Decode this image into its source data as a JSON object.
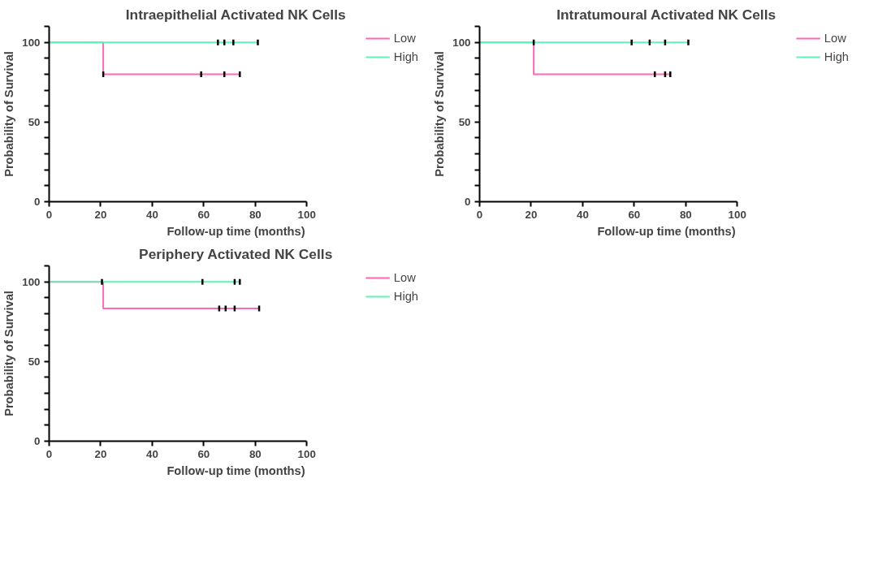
{
  "chart_data": [
    {
      "type": "step",
      "title": "Intraepithelial Activated NK Cells",
      "xlabel": "Follow-up time (months)",
      "ylabel": "Probability of Survival",
      "xlim": [
        0,
        100
      ],
      "xticks": [
        0,
        20,
        40,
        60,
        80,
        100
      ],
      "ylim": [
        0,
        110
      ],
      "yticks": [
        0,
        {
          "value": 10,
          "label": null
        },
        {
          "value": 20,
          "label": null
        },
        {
          "value": 30,
          "label": null
        },
        {
          "value": 40,
          "label": null
        },
        50,
        {
          "value": 60,
          "label": null
        },
        {
          "value": 70,
          "label": null
        },
        {
          "value": 80,
          "label": null
        },
        {
          "value": 90,
          "label": null
        },
        100,
        {
          "value": 110,
          "label": null
        }
      ],
      "grid": false,
      "legend": "top right",
      "series": [
        {
          "name": "Low",
          "color": "#ff69b4",
          "x": [
            0,
            21,
            74
          ],
          "values": [
            100,
            80,
            80
          ]
        },
        {
          "name": "High",
          "color": "#5ff5b8",
          "x": [
            0,
            81
          ],
          "values": [
            100,
            100
          ]
        },
        {
          "type": "scatter",
          "color": "#000000",
          "x": [
            21,
            59,
            68,
            74
          ],
          "values": [
            80,
            80,
            80,
            80
          ]
        },
        {
          "type": "scatter",
          "color": "#000000",
          "x": [
            65.5,
            68,
            71.5,
            81
          ],
          "values": [
            100,
            100,
            100,
            100
          ]
        }
      ]
    },
    {
      "type": "step",
      "title": "Intratumoural Activated NK Cells",
      "xlabel": "Follow-up time (months)",
      "ylabel": "Probability of Survival",
      "xlim": [
        0,
        100
      ],
      "xticks": [
        0,
        20,
        40,
        60,
        80,
        100
      ],
      "ylim": [
        0,
        110
      ],
      "yticks": [
        0,
        {
          "value": 10,
          "label": null
        },
        {
          "value": 20,
          "label": null
        },
        {
          "value": 30,
          "label": null
        },
        {
          "value": 40,
          "label": null
        },
        50,
        {
          "value": 60,
          "label": null
        },
        {
          "value": 70,
          "label": null
        },
        {
          "value": 80,
          "label": null
        },
        {
          "value": 90,
          "label": null
        },
        100,
        {
          "value": 110,
          "label": null
        }
      ],
      "grid": false,
      "legend": "top right",
      "series": [
        {
          "name": "Low",
          "color": "#ff69b4",
          "x": [
            0,
            21,
            74
          ],
          "values": [
            100,
            80,
            80
          ]
        },
        {
          "name": "High",
          "color": "#5ff5b8",
          "x": [
            0,
            81
          ],
          "values": [
            100,
            100
          ]
        },
        {
          "type": "scatter",
          "color": "#000000",
          "x": [
            68,
            72,
            74
          ],
          "values": [
            80,
            80,
            80
          ]
        },
        {
          "type": "scatter",
          "color": "#000000",
          "x": [
            21,
            59,
            66,
            72,
            81
          ],
          "values": [
            100,
            100,
            100,
            100,
            100
          ]
        }
      ]
    },
    {
      "type": "step",
      "title": "Periphery Activated NK Cells",
      "xlabel": "Follow-up time (months)",
      "ylabel": "Probability of Survival",
      "xlim": [
        0,
        100
      ],
      "xticks": [
        0,
        20,
        40,
        60,
        80,
        100
      ],
      "ylim": [
        0,
        110
      ],
      "yticks": [
        0,
        {
          "value": 10,
          "label": null
        },
        {
          "value": 20,
          "label": null
        },
        {
          "value": 30,
          "label": null
        },
        {
          "value": 40,
          "label": null
        },
        50,
        {
          "value": 60,
          "label": null
        },
        {
          "value": 70,
          "label": null
        },
        {
          "value": 80,
          "label": null
        },
        {
          "value": 90,
          "label": null
        },
        100,
        {
          "value": 110,
          "label": null
        }
      ],
      "grid": false,
      "legend": "top right",
      "series": [
        {
          "name": "Low",
          "color": "#ff69b4",
          "x": [
            0,
            21,
            81.5
          ],
          "values": [
            100,
            83.3,
            83.3
          ]
        },
        {
          "name": "High",
          "color": "#5ff5b8",
          "x": [
            0,
            74
          ],
          "values": [
            100,
            100
          ]
        },
        {
          "type": "scatter",
          "color": "#000000",
          "x": [
            66,
            68.5,
            72,
            81.5
          ],
          "values": [
            83.3,
            83.3,
            83.3,
            83.3
          ]
        },
        {
          "type": "scatter",
          "color": "#000000",
          "x": [
            20.5,
            59.5,
            72,
            74
          ],
          "values": [
            100,
            100,
            100,
            100
          ]
        }
      ]
    }
  ]
}
